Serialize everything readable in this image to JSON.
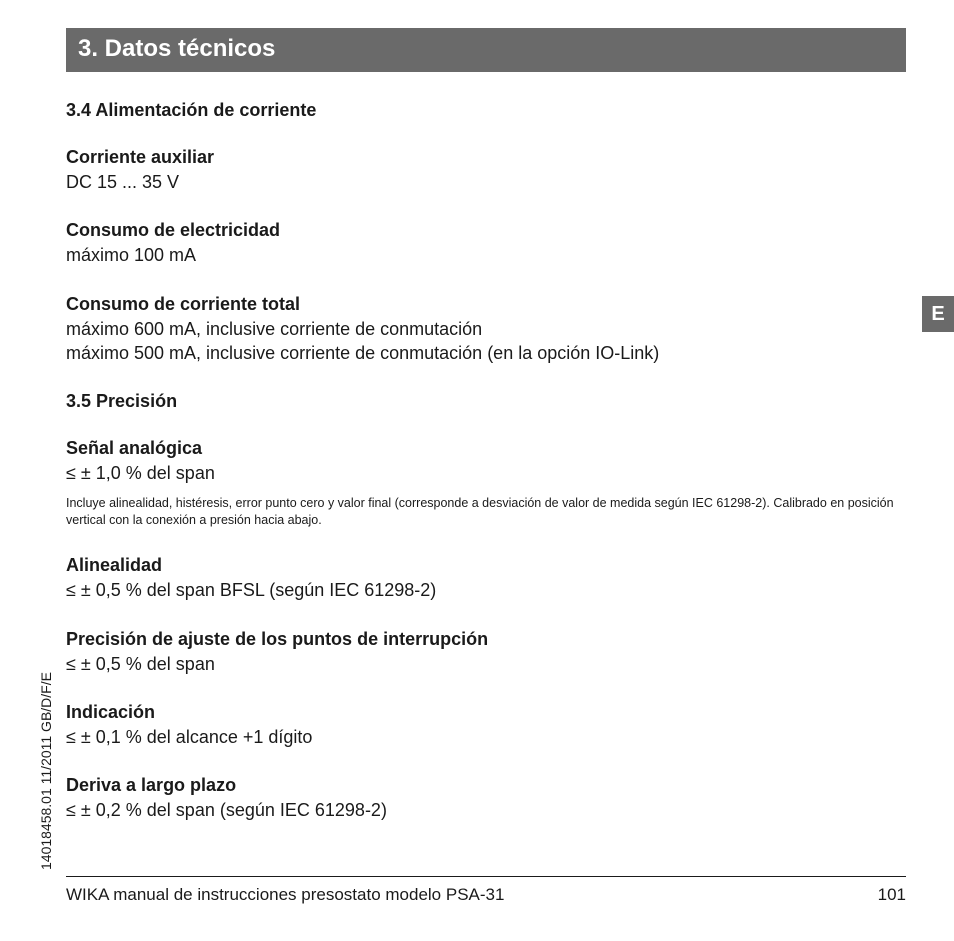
{
  "header": {
    "title": "3. Datos técnicos"
  },
  "lang_tab": "E",
  "side_code": "14018458.01 11/2011 GB/D/F/E",
  "footer": {
    "text": "WIKA manual de instrucciones presostato modelo PSA-31",
    "page": "101"
  },
  "sections": {
    "s34": {
      "heading": "3.4 Alimentación de corriente",
      "aux": {
        "label": "Corriente auxiliar",
        "value": "DC 15 ... 35 V"
      },
      "elec": {
        "label": "Consumo de electricidad",
        "value": "máximo 100 mA"
      },
      "total": {
        "label": "Consumo de corriente total",
        "line1": "máximo 600 mA, inclusive corriente de conmutación",
        "line2": "máximo 500 mA, inclusive corriente de conmutación (en la opción IO-Link)"
      }
    },
    "s35": {
      "heading": "3.5 Precisión",
      "analog": {
        "label": "Señal analógica",
        "value": "≤ ± 1,0 % del span",
        "note": "Incluye alinealidad, histéresis, error punto cero y valor final (corresponde a desviación de valor de medida según IEC 61298-2). Calibrado en posición vertical con la conexión a presión hacia abajo."
      },
      "nonlin": {
        "label": "Alinealidad",
        "value": "≤ ± 0,5 % del span BFSL (según IEC 61298-2)"
      },
      "switchacc": {
        "label": "Precisión de ajuste de los puntos de interrupción",
        "value": "≤ ± 0,5 % del span"
      },
      "indication": {
        "label": "Indicación",
        "value": "≤ ± 0,1 % del alcance +1 dígito"
      },
      "drift": {
        "label": "Deriva a largo plazo",
        "value": "≤ ± 0,2 % del span (según IEC 61298-2)"
      }
    }
  }
}
